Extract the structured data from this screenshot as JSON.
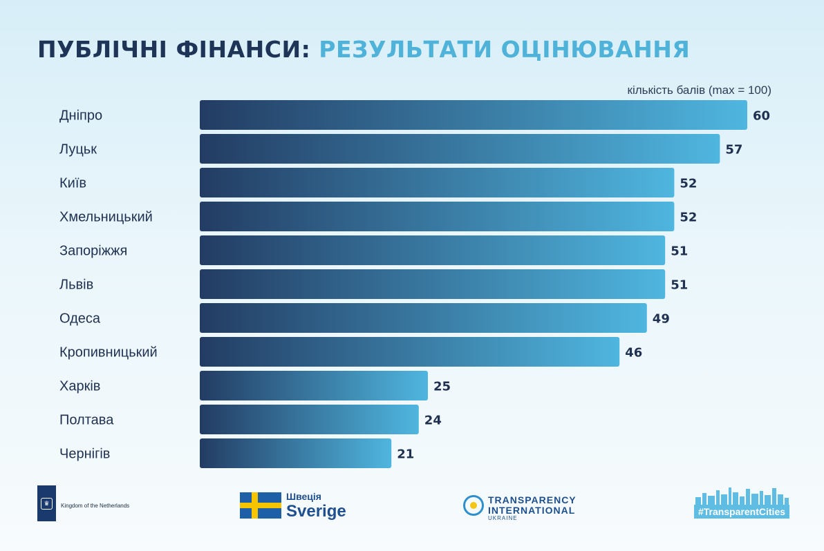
{
  "title": {
    "part1": "ПУБЛІЧНІ ФІНАНСИ:",
    "part2": "РЕЗУЛЬТАТИ ОЦІНЮВАННЯ"
  },
  "chart_data": {
    "type": "bar",
    "orientation": "horizontal",
    "unit_label": "кількість балів (max = 100)",
    "categories": [
      "Дніпро",
      "Луцьк",
      "Київ",
      "Хмельницький",
      "Запоріжжя",
      "Львів",
      "Одеса",
      "Кропивницький",
      "Харків",
      "Полтава",
      "Чернігів"
    ],
    "values": [
      60,
      57,
      52,
      52,
      51,
      51,
      49,
      46,
      25,
      24,
      21
    ],
    "data_labels": [
      "60",
      "57",
      "52",
      "52",
      "51",
      "51",
      "49",
      "46",
      "25",
      "24",
      "21"
    ],
    "grid": false,
    "legend": "none",
    "bar_gradient": [
      "#233c63",
      "#4fb6df"
    ],
    "label_color": "#1f3050"
  },
  "logos": {
    "netherlands": "Kingdom of the Netherlands",
    "sweden_small": "Швеція",
    "sweden_big": "Sverige",
    "ti_line1": "TRANSPARENCY",
    "ti_line2": "INTERNATIONAL",
    "ti_line3": "UKRAINE",
    "tc_hashtag": "#TransparentCities"
  },
  "colors": {
    "title_dark": "#1f3558",
    "title_accent": "#4fb2d9"
  }
}
